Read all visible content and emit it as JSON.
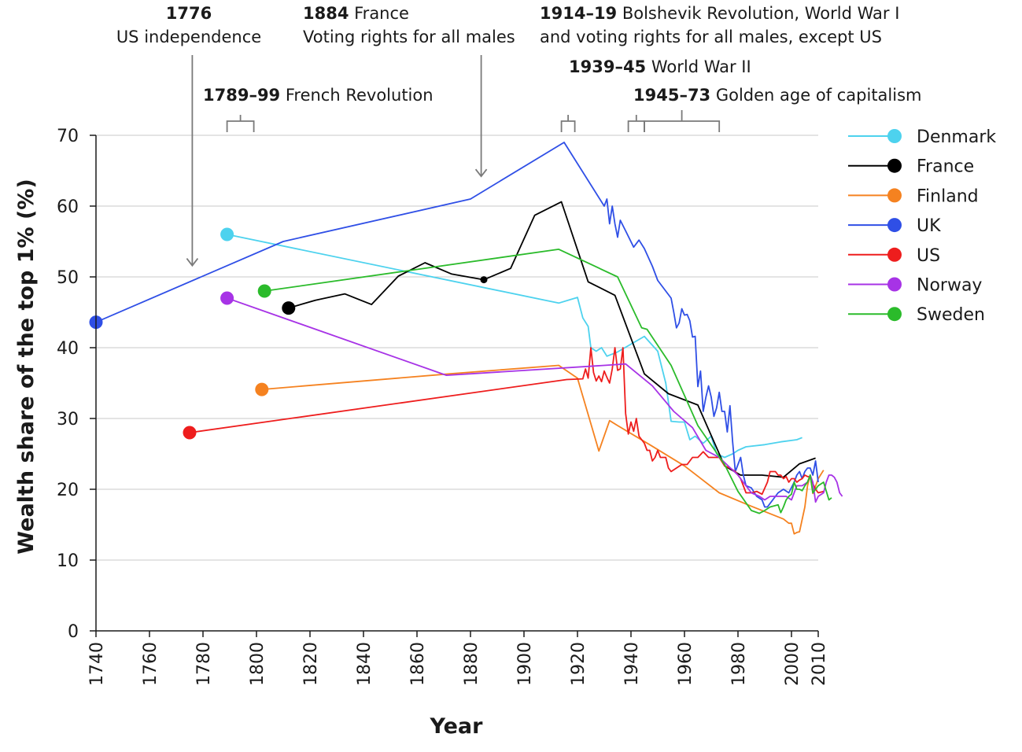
{
  "chart_data": {
    "type": "line",
    "xlabel": "Year",
    "ylabel": "Wealth share of the top 1% (%)",
    "xlim": [
      1740,
      2010
    ],
    "ylim": [
      0,
      70
    ],
    "x_ticks": [
      1740,
      1760,
      1780,
      1800,
      1820,
      1840,
      1860,
      1880,
      1900,
      1920,
      1940,
      1960,
      1980,
      2000,
      2010
    ],
    "y_ticks": [
      0,
      10,
      20,
      30,
      40,
      50,
      60,
      70
    ],
    "grid": "horizontal",
    "legend_position": "right",
    "annotations": [
      {
        "bold": "1776",
        "text": "US independence",
        "type": "arrow",
        "x": 1776
      },
      {
        "bold": "1789–99",
        "text": "French Revolution",
        "type": "bracket",
        "x_start": 1789,
        "x_end": 1799
      },
      {
        "bold": "1884",
        "text": "France",
        "text2": "Voting rights for all males",
        "type": "arrow",
        "x": 1884
      },
      {
        "bold": "1914–19",
        "text": "Bolshevik Revolution, World War I",
        "text2": "and voting rights for all males, except US",
        "type": "bracket",
        "x_start": 1914,
        "x_end": 1919
      },
      {
        "bold": "1939–45",
        "text": "World War II",
        "type": "bracket",
        "x_start": 1939,
        "x_end": 1945
      },
      {
        "bold": "1945–73",
        "text": "Golden age of capitalism",
        "type": "bracket",
        "x_start": 1945,
        "x_end": 1973
      }
    ],
    "series": [
      {
        "name": "Denmark",
        "color": "#4dd2ee",
        "points": [
          [
            1789,
            56
          ],
          [
            1913,
            46.3
          ],
          [
            1920,
            47.1
          ],
          [
            1922,
            44.2
          ],
          [
            1924,
            43
          ],
          [
            1925,
            40
          ],
          [
            1927,
            39.5
          ],
          [
            1929,
            40
          ],
          [
            1931,
            38.8
          ],
          [
            1935,
            39.4
          ],
          [
            1945,
            41.6
          ],
          [
            1950,
            39.5
          ],
          [
            1953,
            35
          ],
          [
            1955,
            29.6
          ],
          [
            1958,
            29.5
          ],
          [
            1960,
            29.5
          ],
          [
            1962,
            27
          ],
          [
            1964,
            27.5
          ],
          [
            1967,
            26.5
          ],
          [
            1970,
            27.5
          ],
          [
            1972,
            25
          ],
          [
            1975,
            24.5
          ],
          [
            1978,
            25
          ],
          [
            1980,
            25.5
          ],
          [
            1983,
            26
          ],
          [
            1990,
            26.3
          ],
          [
            1996,
            26.7
          ],
          [
            2002,
            27
          ],
          [
            2004,
            27.3
          ]
        ]
      },
      {
        "name": "France",
        "color": "#000000",
        "points": [
          [
            1812,
            45.6
          ],
          [
            1822,
            46.7
          ],
          [
            1833,
            47.6
          ],
          [
            1843,
            46.1
          ],
          [
            1853,
            50.1
          ],
          [
            1863,
            52
          ],
          [
            1873,
            50.4
          ],
          [
            1885,
            49.6
          ],
          [
            1895,
            51.2
          ],
          [
            1904,
            58.7
          ],
          [
            1914,
            60.6
          ],
          [
            1924,
            49.3
          ],
          [
            1934,
            47.4
          ],
          [
            1945,
            36.3
          ],
          [
            1954,
            33.5
          ],
          [
            1965,
            31.9
          ],
          [
            1975,
            23.3
          ],
          [
            1981,
            22
          ],
          [
            1989,
            22
          ],
          [
            1997,
            21.7
          ],
          [
            2003,
            23.6
          ],
          [
            2009,
            24.4
          ]
        ]
      },
      {
        "name": "Finland",
        "color": "#f58220",
        "points": [
          [
            1802,
            34.1
          ],
          [
            1872,
            36.3
          ],
          [
            1913,
            37.5
          ],
          [
            1920,
            35.7
          ],
          [
            1928,
            25.4
          ],
          [
            1932,
            29.7
          ],
          [
            1935,
            29
          ],
          [
            1947,
            26.3
          ],
          [
            1960,
            23.3
          ],
          [
            1973,
            19.5
          ],
          [
            1985,
            17.6
          ],
          [
            1997,
            15.8
          ],
          [
            1999,
            15.2
          ],
          [
            2000,
            15.2
          ],
          [
            2001,
            13.7
          ],
          [
            2002,
            13.9
          ],
          [
            2003,
            14
          ],
          [
            2005,
            17.5
          ],
          [
            2006,
            20.5
          ],
          [
            2007,
            22
          ],
          [
            2008,
            19.4
          ],
          [
            2010,
            21.5
          ],
          [
            2012,
            22.7
          ]
        ]
      },
      {
        "name": "UK",
        "color": "#2f4fe6",
        "points": [
          [
            1740,
            43.6
          ],
          [
            1810,
            55
          ],
          [
            1880,
            61
          ],
          [
            1915,
            69
          ],
          [
            1930,
            60
          ],
          [
            1931,
            61
          ],
          [
            1932,
            57.5
          ],
          [
            1933,
            60
          ],
          [
            1934,
            57.5
          ],
          [
            1935,
            55.6
          ],
          [
            1936,
            58
          ],
          [
            1938,
            56.5
          ],
          [
            1941,
            54.2
          ],
          [
            1943,
            55.2
          ],
          [
            1945,
            54
          ],
          [
            1948,
            51.5
          ],
          [
            1950,
            49.5
          ],
          [
            1955,
            47
          ],
          [
            1956,
            45
          ],
          [
            1957,
            42.8
          ],
          [
            1958,
            43.5
          ],
          [
            1959,
            45.5
          ],
          [
            1960,
            44.6
          ],
          [
            1961,
            44.7
          ],
          [
            1962,
            43.8
          ],
          [
            1963,
            41.5
          ],
          [
            1964,
            41.6
          ],
          [
            1965,
            34.5
          ],
          [
            1966,
            36.7
          ],
          [
            1967,
            31
          ],
          [
            1968,
            33
          ],
          [
            1969,
            34.6
          ],
          [
            1970,
            33
          ],
          [
            1971,
            30.3
          ],
          [
            1972,
            31.5
          ],
          [
            1973,
            33.7
          ],
          [
            1974,
            31
          ],
          [
            1975,
            31
          ],
          [
            1976,
            28.1
          ],
          [
            1977,
            31.8
          ],
          [
            1978,
            26.7
          ],
          [
            1979,
            22.5
          ],
          [
            1980,
            23.5
          ],
          [
            1981,
            24.5
          ],
          [
            1982,
            22
          ],
          [
            1983,
            20.5
          ],
          [
            1985,
            20.2
          ],
          [
            1987,
            19
          ],
          [
            1989,
            18.5
          ],
          [
            1990,
            17.5
          ],
          [
            1991,
            17.5
          ],
          [
            1993,
            18.5
          ],
          [
            1995,
            19.5
          ],
          [
            1997,
            20
          ],
          [
            1999,
            19.5
          ],
          [
            2001,
            21
          ],
          [
            2002,
            22
          ],
          [
            2003,
            22.5
          ],
          [
            2004,
            21.5
          ],
          [
            2005,
            22.5
          ],
          [
            2006,
            23
          ],
          [
            2007,
            23
          ],
          [
            2008,
            22
          ],
          [
            2009,
            24
          ],
          [
            2010,
            21
          ]
        ]
      },
      {
        "name": "US",
        "color": "#ee1d1d",
        "points": [
          [
            1775,
            28
          ],
          [
            1916,
            35.5
          ],
          [
            1922,
            35.6
          ],
          [
            1923,
            37
          ],
          [
            1924,
            35.7
          ],
          [
            1925,
            40
          ],
          [
            1926,
            36.5
          ],
          [
            1927,
            35.3
          ],
          [
            1928,
            36
          ],
          [
            1929,
            35.2
          ],
          [
            1930,
            36.7
          ],
          [
            1931,
            35.8
          ],
          [
            1932,
            35
          ],
          [
            1933,
            37
          ],
          [
            1934,
            40
          ],
          [
            1935,
            36.8
          ],
          [
            1936,
            37
          ],
          [
            1937,
            40
          ],
          [
            1938,
            30.7
          ],
          [
            1939,
            27.8
          ],
          [
            1940,
            29.5
          ],
          [
            1941,
            28.2
          ],
          [
            1942,
            30
          ],
          [
            1943,
            27.5
          ],
          [
            1945,
            26.5
          ],
          [
            1946,
            25.5
          ],
          [
            1947,
            25.5
          ],
          [
            1948,
            24
          ],
          [
            1949,
            24.5
          ],
          [
            1950,
            25.5
          ],
          [
            1951,
            24.5
          ],
          [
            1953,
            24.5
          ],
          [
            1954,
            23
          ],
          [
            1955,
            22.5
          ],
          [
            1957,
            23
          ],
          [
            1959,
            23.5
          ],
          [
            1961,
            23.5
          ],
          [
            1963,
            24.5
          ],
          [
            1965,
            24.5
          ],
          [
            1967,
            25.3
          ],
          [
            1969,
            24.5
          ],
          [
            1971,
            24.5
          ],
          [
            1973,
            24.5
          ],
          [
            1975,
            23.3
          ],
          [
            1977,
            23
          ],
          [
            1979,
            22.5
          ],
          [
            1981,
            21.5
          ],
          [
            1983,
            19.5
          ],
          [
            1985,
            19.5
          ],
          [
            1987,
            19.7
          ],
          [
            1989,
            19.3
          ],
          [
            1991,
            21
          ],
          [
            1992,
            22.5
          ],
          [
            1993,
            22.5
          ],
          [
            1994,
            22.5
          ],
          [
            1995,
            22
          ],
          [
            1996,
            22
          ],
          [
            1997,
            21.5
          ],
          [
            1998,
            21.8
          ],
          [
            1999,
            21
          ],
          [
            2000,
            21.5
          ],
          [
            2001,
            21.5
          ],
          [
            2002,
            21
          ],
          [
            2003,
            21.3
          ],
          [
            2004,
            21.5
          ],
          [
            2005,
            22
          ],
          [
            2006,
            21.8
          ],
          [
            2007,
            21.7
          ],
          [
            2008,
            20.8
          ],
          [
            2009,
            20
          ],
          [
            2010,
            19.5
          ],
          [
            2012,
            19.7
          ]
        ]
      },
      {
        "name": "Norway",
        "color": "#a733e6",
        "points": [
          [
            1789,
            47
          ],
          [
            1871,
            36.1
          ],
          [
            1930,
            37.5
          ],
          [
            1938,
            37.7
          ],
          [
            1948,
            34.6
          ],
          [
            1956,
            31
          ],
          [
            1963,
            28.7
          ],
          [
            1968,
            25.5
          ],
          [
            1973,
            24.5
          ],
          [
            1980,
            22
          ],
          [
            1985,
            19.5
          ],
          [
            1988,
            19
          ],
          [
            1990,
            18.5
          ],
          [
            1992,
            19
          ],
          [
            1994,
            19
          ],
          [
            1996,
            19
          ],
          [
            1998,
            19
          ],
          [
            2000,
            18.5
          ],
          [
            2002,
            20.5
          ],
          [
            2004,
            20.5
          ],
          [
            2006,
            21
          ],
          [
            2007,
            22
          ],
          [
            2008,
            21
          ],
          [
            2009,
            18.2
          ],
          [
            2010,
            19
          ],
          [
            2012,
            19.5
          ],
          [
            2013,
            21
          ],
          [
            2014,
            22
          ],
          [
            2015,
            22
          ],
          [
            2016,
            21.7
          ],
          [
            2017,
            21
          ],
          [
            2018,
            19.5
          ],
          [
            2019,
            19
          ]
        ]
      },
      {
        "name": "Sweden",
        "color": "#2bbb2b",
        "points": [
          [
            1803,
            48
          ],
          [
            1913,
            53.9
          ],
          [
            1935,
            50
          ],
          [
            1944,
            42.8
          ],
          [
            1946,
            42.6
          ],
          [
            1955,
            37.5
          ],
          [
            1965,
            29
          ],
          [
            1975,
            23.5
          ],
          [
            1980,
            19.7
          ],
          [
            1985,
            17
          ],
          [
            1988,
            16.6
          ],
          [
            1990,
            17
          ],
          [
            1992,
            17.5
          ],
          [
            1995,
            17.8
          ],
          [
            1996,
            16.7
          ],
          [
            1997,
            17.5
          ],
          [
            1998,
            18.5
          ],
          [
            1999,
            19
          ],
          [
            2000,
            19.3
          ],
          [
            2001,
            21
          ],
          [
            2002,
            20
          ],
          [
            2003,
            20
          ],
          [
            2004,
            19.8
          ],
          [
            2005,
            20.5
          ],
          [
            2006,
            21
          ],
          [
            2007,
            22
          ],
          [
            2008,
            19.5
          ],
          [
            2009,
            20
          ],
          [
            2010,
            20.5
          ],
          [
            2012,
            21
          ],
          [
            2014,
            18.5
          ],
          [
            2015,
            18.8
          ]
        ]
      }
    ]
  }
}
